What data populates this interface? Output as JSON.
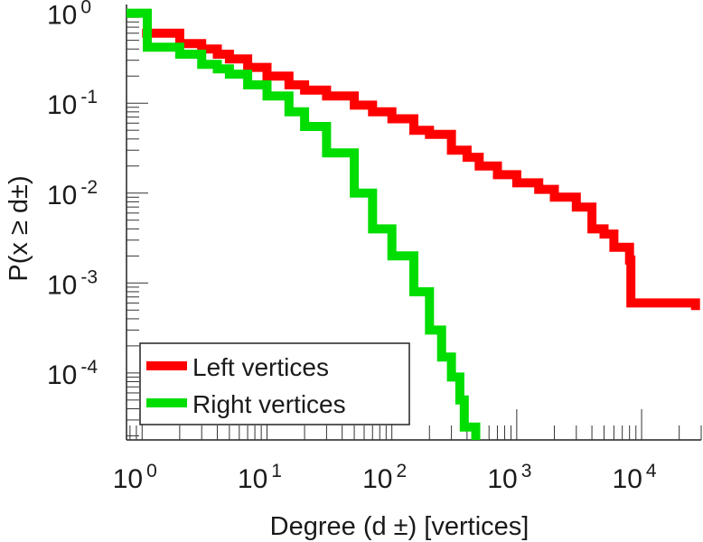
{
  "chart_data": {
    "type": "line",
    "title": "",
    "xlabel": "Degree (d ±) [vertices]",
    "ylabel": "P(x ≥ d±)",
    "xscale": "log",
    "yscale": "log",
    "xlim": [
      0.75,
      30000
    ],
    "ylim": [
      1.8e-05,
      1.25
    ],
    "grid": false,
    "legend_position": "bottom-left",
    "x_tick_labels": [
      {
        "value": 1,
        "base": "10",
        "exp": "0"
      },
      {
        "value": 10,
        "base": "10",
        "exp": "1"
      },
      {
        "value": 100,
        "base": "10",
        "exp": "2"
      },
      {
        "value": 1000,
        "base": "10",
        "exp": "3"
      },
      {
        "value": 10000,
        "base": "10",
        "exp": "4"
      }
    ],
    "y_tick_labels": [
      {
        "value": 1,
        "base": "10",
        "exp": "0"
      },
      {
        "value": 0.1,
        "base": "10",
        "exp": "-1"
      },
      {
        "value": 0.01,
        "base": "10",
        "exp": "-2"
      },
      {
        "value": 0.001,
        "base": "10",
        "exp": "-3"
      },
      {
        "value": 0.0001,
        "base": "10",
        "exp": "-4"
      }
    ],
    "series": [
      {
        "name": "Left vertices",
        "color": "#ff0000",
        "points": [
          [
            1,
            0.6
          ],
          [
            2,
            0.46
          ],
          [
            3,
            0.4
          ],
          [
            4,
            0.35
          ],
          [
            5,
            0.31
          ],
          [
            7,
            0.25
          ],
          [
            10,
            0.2
          ],
          [
            15,
            0.16
          ],
          [
            20,
            0.14
          ],
          [
            30,
            0.12
          ],
          [
            50,
            0.095
          ],
          [
            70,
            0.08
          ],
          [
            100,
            0.067
          ],
          [
            150,
            0.05
          ],
          [
            200,
            0.045
          ],
          [
            300,
            0.03
          ],
          [
            400,
            0.025
          ],
          [
            500,
            0.02
          ],
          [
            700,
            0.016
          ],
          [
            1000,
            0.013
          ],
          [
            1500,
            0.011
          ],
          [
            2000,
            0.009
          ],
          [
            3000,
            0.007
          ],
          [
            4000,
            0.004
          ],
          [
            5000,
            0.0035
          ],
          [
            6000,
            0.0025
          ],
          [
            8000,
            0.0018
          ],
          [
            8200,
            0.0006
          ],
          [
            27000,
            0.0005
          ]
        ]
      },
      {
        "name": "Right vertices",
        "color": "#00dd00",
        "points": [
          [
            0.75,
            1
          ],
          [
            1,
            1
          ],
          [
            1.1,
            0.42
          ],
          [
            2,
            0.35
          ],
          [
            3,
            0.27
          ],
          [
            4,
            0.24
          ],
          [
            5,
            0.21
          ],
          [
            7,
            0.16
          ],
          [
            10,
            0.12
          ],
          [
            15,
            0.08
          ],
          [
            20,
            0.055
          ],
          [
            30,
            0.028
          ],
          [
            50,
            0.01
          ],
          [
            70,
            0.004
          ],
          [
            100,
            0.002
          ],
          [
            150,
            0.0008
          ],
          [
            200,
            0.0003
          ],
          [
            250,
            0.00015
          ],
          [
            300,
            9e-05
          ],
          [
            350,
            5e-05
          ],
          [
            380,
            2.5e-05
          ],
          [
            470,
            1.8e-05
          ]
        ]
      }
    ]
  }
}
